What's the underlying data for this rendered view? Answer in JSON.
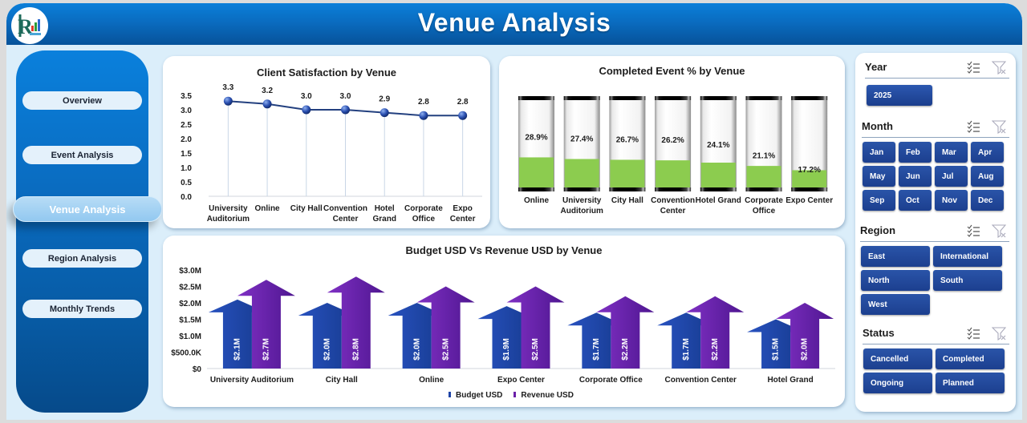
{
  "header": {
    "title": "Venue Analysis",
    "logo": "rk-logo-icon"
  },
  "sidebar": {
    "items": [
      {
        "label": "Overview",
        "active": false
      },
      {
        "label": "Event  Analysis",
        "active": false
      },
      {
        "label": "Venue Analysis",
        "active": true
      },
      {
        "label": "Region Analysis",
        "active": false
      },
      {
        "label": "Monthly Trends",
        "active": false
      }
    ]
  },
  "charts": {
    "satisfaction": {
      "title": "Client Satisfaction by Venue"
    },
    "completed": {
      "title": "Completed Event % by Venue"
    },
    "budget": {
      "title": "Budget USD Vs Revenue USD by Venue",
      "legend": {
        "budget": "Budget USD",
        "revenue": "Revenue USD"
      }
    }
  },
  "chart_data": [
    {
      "type": "line",
      "title": "Client Satisfaction by Venue",
      "categories": [
        "University Auditorium",
        "Online",
        "City Hall",
        "Convention Center",
        "Hotel Grand",
        "Corporate Office",
        "Expo Center"
      ],
      "values": [
        3.3,
        3.2,
        3.0,
        3.0,
        2.9,
        2.8,
        2.8
      ],
      "data_labels": [
        "3.3",
        "3.2",
        "3.0",
        "3.0",
        "2.9",
        "2.8",
        "2.8"
      ],
      "yticks": [
        "0.0",
        "0.5",
        "1.0",
        "1.5",
        "2.0",
        "2.5",
        "3.0",
        "3.5"
      ],
      "ylim": [
        0,
        3.5
      ],
      "xlabel": "",
      "ylabel": "",
      "grid": "vertical drop lines",
      "color": "#1f3f8f"
    },
    {
      "type": "bar",
      "title": "Completed Event % by Venue",
      "categories": [
        "Online",
        "University Auditorium",
        "City Hall",
        "Convention Center",
        "Hotel Grand",
        "Corporate Office",
        "Expo Center"
      ],
      "values": [
        28.9,
        27.4,
        26.7,
        26.2,
        24.1,
        21.1,
        17.2
      ],
      "data_labels": [
        "28.9%",
        "27.4%",
        "26.7%",
        "26.2%",
        "24.1%",
        "21.1%",
        "17.2%"
      ],
      "unit": "%",
      "color": "#8ccc4f"
    },
    {
      "type": "bar",
      "title": "Budget USD Vs Revenue USD by Venue",
      "categories": [
        "University Auditorium",
        "City Hall",
        "Online",
        "Expo Center",
        "Corporate Office",
        "Convention Center",
        "Hotel Grand"
      ],
      "series": [
        {
          "name": "Budget USD",
          "values": [
            2.1,
            2.0,
            2.0,
            1.9,
            1.7,
            1.7,
            1.5
          ],
          "labels": [
            "$2.1M",
            "$2.0M",
            "$2.0M",
            "$1.9M",
            "$1.7M",
            "$1.7M",
            "$1.5M"
          ],
          "color": "#1e43a6"
        },
        {
          "name": "Revenue USD",
          "values": [
            2.7,
            2.8,
            2.5,
            2.5,
            2.2,
            2.2,
            2.0
          ],
          "labels": [
            "$2.7M",
            "$2.8M",
            "$2.5M",
            "$2.5M",
            "$2.2M",
            "$2.2M",
            "$2.0M"
          ],
          "color": "#6a1fa8"
        }
      ],
      "yticks": [
        "$0",
        "$500.0K",
        "$1.0M",
        "$1.5M",
        "$2.0M",
        "$2.5M",
        "$3.0M"
      ],
      "ylim": [
        0,
        3.0
      ],
      "units": "USD millions",
      "legend_position": "bottom"
    }
  ],
  "slicers": {
    "year": {
      "title": "Year",
      "options": [
        "2025"
      ]
    },
    "month": {
      "title": "Month",
      "options": [
        "Jan",
        "Feb",
        "Mar",
        "Apr",
        "May",
        "Jun",
        "Jul",
        "Aug",
        "Sep",
        "Oct",
        "Nov",
        "Dec"
      ]
    },
    "region": {
      "title": "Region",
      "options": [
        "East",
        "International",
        "North",
        "South",
        "West"
      ]
    },
    "status": {
      "title": "Status",
      "options": [
        "Cancelled",
        "Completed",
        "Ongoing",
        "Planned"
      ]
    },
    "icons": {
      "multi_select": "multi-select-icon",
      "clear_filter": "clear-filter-icon"
    }
  }
}
